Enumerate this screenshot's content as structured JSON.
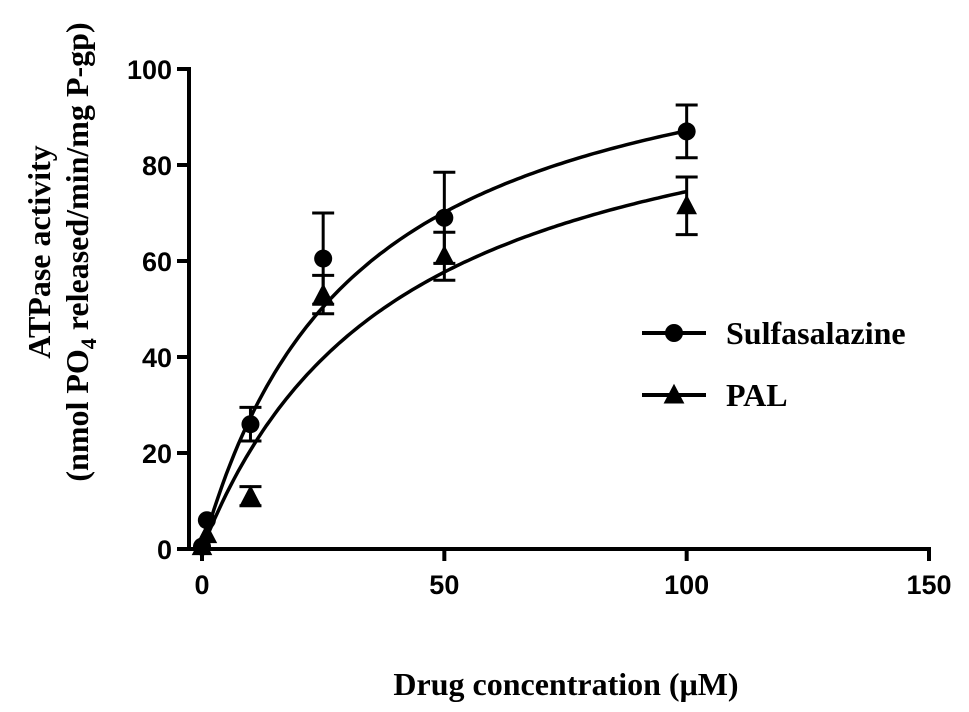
{
  "chart_data": {
    "type": "scatter",
    "xlabel": "Drug concentration (μM)",
    "ylabel_line1": "ATPase activity",
    "ylabel_line2_prefix": "(nmol PO",
    "ylabel_line2_sub": "4",
    "ylabel_line2_suffix": " released/min/mg P-gp)",
    "xlim": [
      0,
      150
    ],
    "ylim": [
      0,
      100
    ],
    "x_ticks": [
      0,
      50,
      100,
      150
    ],
    "y_ticks": [
      0,
      20,
      40,
      60,
      80,
      100
    ],
    "grid": false,
    "legend_position": "right",
    "series": [
      {
        "name": "Sulfasalazine",
        "marker": "circle",
        "x": [
          0,
          1,
          10,
          25,
          50,
          100
        ],
        "y": [
          0.5,
          6,
          26,
          60.5,
          69,
          87
        ],
        "error": [
          0,
          0,
          3.5,
          9.5,
          9.5,
          5.5
        ],
        "fit": {
          "model": "michaelis-menten",
          "vmax": 115,
          "km": 32
        }
      },
      {
        "name": "PAL",
        "marker": "triangle",
        "x": [
          0,
          1,
          10,
          25,
          50,
          100
        ],
        "y": [
          0.5,
          3,
          11,
          53,
          61,
          71.5
        ],
        "error": [
          0,
          0,
          2,
          4,
          5,
          6
        ],
        "fit": {
          "model": "michaelis-menten",
          "vmax": 105,
          "km": 41
        }
      }
    ],
    "colors": {
      "ink": "#000000",
      "background": "#ffffff"
    }
  }
}
